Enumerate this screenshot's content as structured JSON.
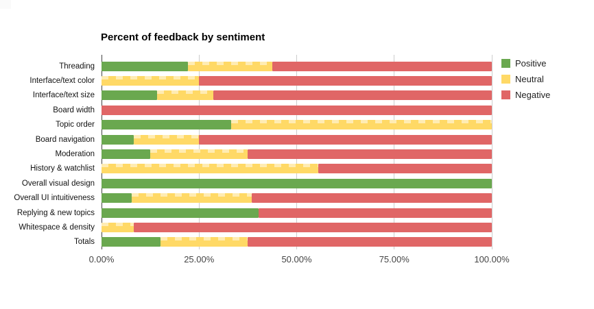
{
  "chart": {
    "title": "Percent of feedback by sentiment"
  },
  "colors": {
    "positive": "#6aa84f",
    "neutral": "#ffd966",
    "negative": "#e06666",
    "gridline": "#cccccc",
    "axis_line": "#424242",
    "background": "#ffffff"
  },
  "chart_data": {
    "type": "bar",
    "orientation": "horizontal",
    "stacked": true,
    "stacked_unit": "percent",
    "title": "Percent of feedback by sentiment",
    "xlabel": "",
    "ylabel": "",
    "xlim": [
      0,
      100
    ],
    "grid": true,
    "legend_position": "right",
    "categories": [
      "Threading",
      "Interface/text color",
      "Interface/text size",
      "Board width",
      "Topic order",
      "Board navigation",
      "Moderation",
      "History & watchlist",
      "Overall visual design",
      "Overall UI intuitiveness",
      "Replying & new topics",
      "Whitespace & density",
      "Totals"
    ],
    "series": [
      {
        "name": "Positive",
        "color": "#6aa84f",
        "values": [
          22.1,
          0,
          14.3,
          0,
          33.3,
          8.3,
          12.5,
          0,
          100,
          7.7,
          40.2,
          0,
          15.1
        ]
      },
      {
        "name": "Neutral",
        "color": "#ffd966",
        "values": [
          21.6,
          25,
          14.3,
          0,
          66.7,
          16.7,
          25,
          55.6,
          0,
          30.8,
          0,
          8.3,
          22.3
        ]
      },
      {
        "name": "Negative",
        "color": "#e06666",
        "values": [
          56.3,
          75,
          71.4,
          100,
          0,
          75,
          62.5,
          44.4,
          0,
          61.5,
          59.8,
          91.7,
          62.6
        ]
      }
    ],
    "x_ticks": [
      "0.00%",
      "25.00%",
      "50.00%",
      "75.00%",
      "100.00%"
    ],
    "x_tick_values": [
      0,
      25,
      50,
      75,
      100
    ]
  }
}
